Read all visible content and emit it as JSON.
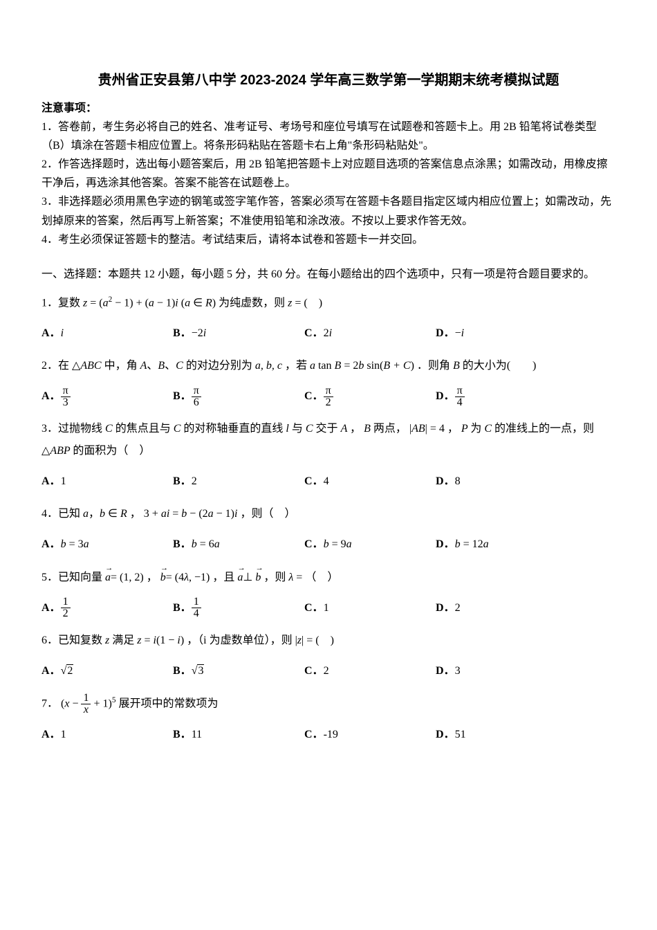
{
  "doc": {
    "title": "贵州省正安县第八中学 2023-2024 学年高三数学第一学期期末统考模拟试题",
    "title_fontsize": 20,
    "title_font": "SimHei",
    "body_font": "SimSun",
    "body_fontsize": 16,
    "text_color": "#000000",
    "background_color": "#ffffff"
  },
  "notice": {
    "heading": "注意事项：",
    "items": [
      "1．答卷前，考生务必将自己的姓名、准考证号、考场号和座位号填写在试题卷和答题卡上。用 2B 铅笔将试卷类型（B）填涂在答题卡相应位置上。将条形码粘贴在答题卡右上角\"条形码粘贴处\"。",
      "2．作答选择题时，选出每小题答案后，用 2B 铅笔把答题卡上对应题目选项的答案信息点涂黑；如需改动，用橡皮擦干净后，再选涂其他答案。答案不能答在试题卷上。",
      "3．非选择题必须用黑色字迹的钢笔或签字笔作答，答案必须写在答题卡各题目指定区域内相应位置上；如需改动，先划掉原来的答案，然后再写上新答案；不准使用铅笔和涂改液。不按以上要求作答无效。",
      "4．考生必须保证答题卡的整洁。考试结束后，请将本试卷和答题卡一并交回。"
    ]
  },
  "section1": {
    "heading": "一、选择题：本题共 12 小题，每小题 5 分，共 60 分。在每小题给出的四个选项中，只有一项是符合题目要求的。"
  },
  "q1": {
    "number": "1．",
    "pre": "复数",
    "expr": "z = (a² − 1) + (a − 1)i (a ∈ R)",
    "post": "为纯虚数，则",
    "tail": " z = (　)",
    "choices": {
      "A": "i",
      "B": "−2i",
      "C": "2i",
      "D": "−i"
    }
  },
  "q2": {
    "number": "2．",
    "t1": "在",
    "abc": "△ABC",
    "t2": "中，角",
    "angles": "A、B、C",
    "t3": "的对边分别为",
    "sides": "a, b, c",
    "t4": "，若",
    "expr": "a tan B = 2b sin(B + C)",
    "t5": "．则角",
    "B": "B",
    "t6": "的大小为(　　)",
    "choices": {
      "A": {
        "num": "π",
        "den": "3"
      },
      "B": {
        "num": "π",
        "den": "6"
      },
      "C": {
        "num": "π",
        "den": "2"
      },
      "D": {
        "num": "π",
        "den": "4"
      }
    }
  },
  "q3": {
    "number": "3．",
    "t1": "过抛物线",
    "C1": "C",
    "t2": "的焦点且与",
    "C2": "C",
    "t3": "的对称轴垂直的直线",
    "l": "l",
    "t4": "与",
    "C3": "C",
    "t5": "交于",
    "A": "A",
    "t6": "，",
    "Bp": "B",
    "t7": "两点，",
    "ab": "|AB| = 4",
    "t8": "，",
    "P": "P",
    "t9": "为",
    "C4": "C",
    "t10": "的准线上的一点，则",
    "tri": "△ABP",
    "t11": "的面积为（　）",
    "choices": {
      "A": "1",
      "B": "2",
      "C": "4",
      "D": "8"
    }
  },
  "q4": {
    "number": "4．",
    "t1": "已知",
    "ab": "a，b ∈ R",
    "t2": "，",
    "expr": "3 + ai = b − (2a − 1)i",
    "t3": "，则（　）",
    "choices": {
      "A": "b = 3a",
      "B": "b = 6a",
      "C": "b = 9a",
      "D": "b = 12a"
    }
  },
  "q5": {
    "number": "5．",
    "t1": "已知向量",
    "a": "a = (1, 2)",
    "t2": "，",
    "b": "b = (4λ, −1)",
    "t3": "，且",
    "perp": "a ⊥ b",
    "t4": "，则",
    "lam": "λ =",
    "t5": "（　）",
    "choices": {
      "A": {
        "num": "1",
        "den": "2"
      },
      "B": {
        "num": "1",
        "den": "4"
      },
      "C": "1",
      "D": "2"
    }
  },
  "q6": {
    "number": "6．",
    "t1": "已知复数",
    "z": "z",
    "t2": "满足",
    "expr": "z = i(1 − i)",
    "t3": "，（i 为虚数单位），则",
    "abs": "|z| =",
    "t4": "(　)",
    "choices": {
      "A": "√2",
      "B": "√3",
      "C": "2",
      "D": "3"
    }
  },
  "q7": {
    "number": "7．",
    "expr": "(x − 1/x + 1)⁵",
    "t1": "展开项中的常数项为",
    "choices": {
      "A": "1",
      "B": "11",
      "C": "-19",
      "D": "51"
    }
  },
  "labels": {
    "A": "A．",
    "B": "B．",
    "C": "C．",
    "D": "D．"
  }
}
